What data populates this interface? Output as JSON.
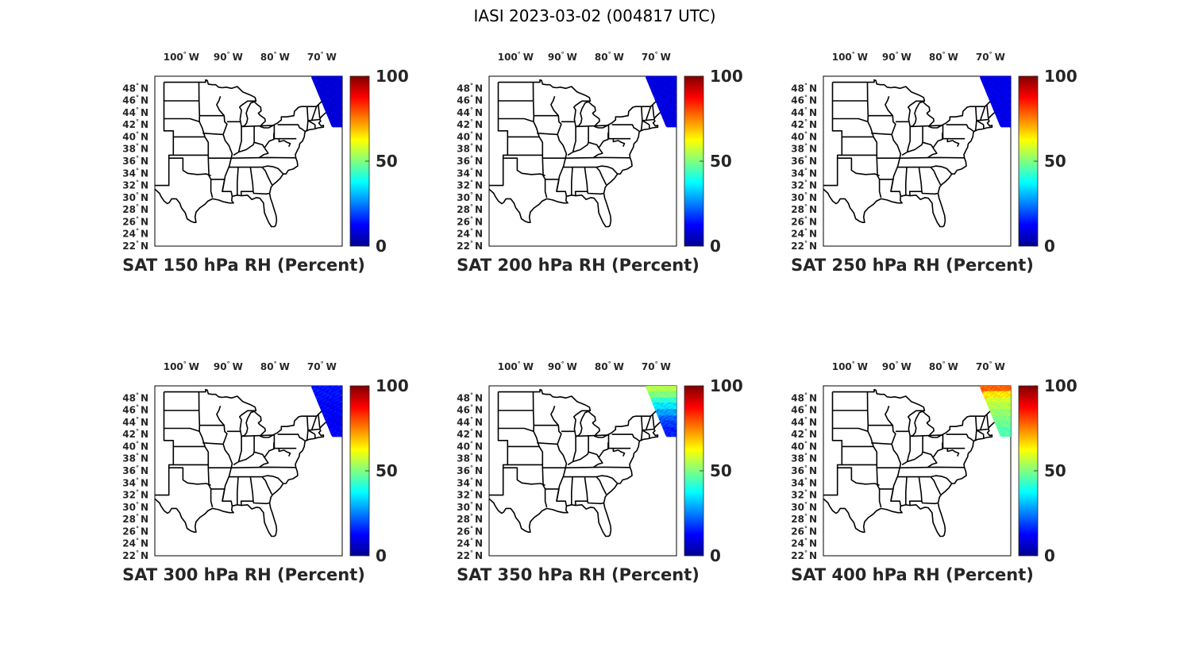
{
  "figure_title": "IASI 2023-03-02 (004817 UTC)",
  "colormap": [
    "#00008f",
    "#0000ff",
    "#0080ff",
    "#00ffff",
    "#80ff80",
    "#ffff00",
    "#ff8000",
    "#ff0000",
    "#800000"
  ],
  "map_colors": {
    "state_outline": "#000000",
    "frame": "#000000"
  },
  "lon_ticks": [
    {
      "value": -100,
      "label": "100",
      "hemi": "W"
    },
    {
      "value": -90,
      "label": "90",
      "hemi": "W"
    },
    {
      "value": -80,
      "label": "80",
      "hemi": "W"
    },
    {
      "value": -70,
      "label": "70",
      "hemi": "W"
    }
  ],
  "lat_ticks": [
    {
      "value": 48,
      "label": "48",
      "hemi": "N"
    },
    {
      "value": 46,
      "label": "46",
      "hemi": "N"
    },
    {
      "value": 44,
      "label": "44",
      "hemi": "N"
    },
    {
      "value": 42,
      "label": "42",
      "hemi": "N"
    },
    {
      "value": 40,
      "label": "40",
      "hemi": "N"
    },
    {
      "value": 38,
      "label": "38",
      "hemi": "N"
    },
    {
      "value": 36,
      "label": "36",
      "hemi": "N"
    },
    {
      "value": 34,
      "label": "34",
      "hemi": "N"
    },
    {
      "value": 32,
      "label": "32",
      "hemi": "N"
    },
    {
      "value": 30,
      "label": "30",
      "hemi": "N"
    },
    {
      "value": 28,
      "label": "28",
      "hemi": "N"
    },
    {
      "value": 26,
      "label": "26",
      "hemi": "N"
    },
    {
      "value": 24,
      "label": "24",
      "hemi": "N"
    },
    {
      "value": 22,
      "label": "22",
      "hemi": "N"
    }
  ],
  "map_extent": {
    "lon": [
      -106,
      -66
    ],
    "lat": [
      22,
      50
    ]
  },
  "colorbar": {
    "min": 0,
    "max": 100,
    "ticks": [
      "0",
      "50",
      "100"
    ]
  },
  "panels": [
    {
      "title": "SAT 150 hPa RH (Percent)",
      "rh_profile": [
        8,
        8,
        8,
        8,
        8,
        8,
        8,
        8
      ]
    },
    {
      "title": "SAT 200 hPa RH (Percent)",
      "rh_profile": [
        9,
        9,
        9,
        9,
        9,
        9,
        9,
        9
      ]
    },
    {
      "title": "SAT 250 hPa RH (Percent)",
      "rh_profile": [
        10,
        10,
        10,
        10,
        10,
        10,
        10,
        10
      ]
    },
    {
      "title": "SAT 300 hPa RH (Percent)",
      "rh_profile": [
        14,
        14,
        13,
        12,
        12,
        11,
        11,
        12
      ]
    },
    {
      "title": "SAT 350 hPa RH (Percent)",
      "rh_profile": [
        55,
        50,
        42,
        35,
        28,
        22,
        18,
        15
      ]
    },
    {
      "title": "SAT 400 hPa RH (Percent)",
      "rh_profile": [
        78,
        65,
        58,
        55,
        52,
        50,
        48,
        45
      ]
    }
  ]
}
